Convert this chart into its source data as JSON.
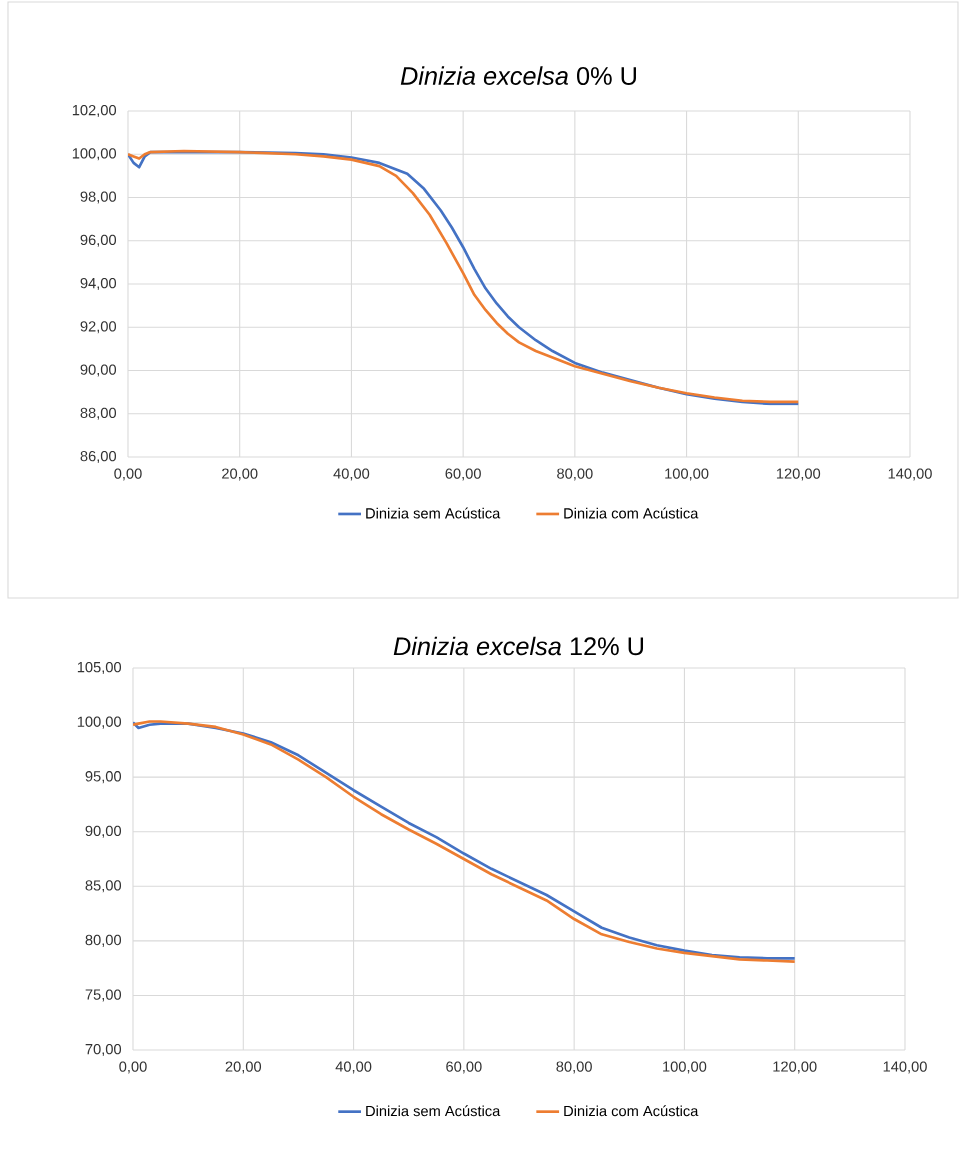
{
  "chart_data": [
    {
      "type": "line",
      "title": "*Dinizia excelsa* 0% U",
      "xlim": [
        0,
        140
      ],
      "ylim": [
        86,
        102
      ],
      "xticks": [
        {
          "value": 0,
          "label": "0,00"
        },
        {
          "value": 20,
          "label": "20,00"
        },
        {
          "value": 40,
          "label": "40,00"
        },
        {
          "value": 60,
          "label": "60,00"
        },
        {
          "value": 80,
          "label": "80,00"
        },
        {
          "value": 100,
          "label": "100,00"
        },
        {
          "value": 120,
          "label": "120,00"
        },
        {
          "value": 140,
          "label": "140,00"
        }
      ],
      "yticks": [
        {
          "value": 86,
          "label": "86,00"
        },
        {
          "value": 88,
          "label": "88,00"
        },
        {
          "value": 90,
          "label": "90,00"
        },
        {
          "value": 92,
          "label": "92,00"
        },
        {
          "value": 94,
          "label": "94,00"
        },
        {
          "value": 96,
          "label": "96,00"
        },
        {
          "value": 98,
          "label": "98,00"
        },
        {
          "value": 100,
          "label": "100,00"
        },
        {
          "value": 102,
          "label": "102,00"
        }
      ],
      "grid": true,
      "legend": "bottom",
      "marker": "none",
      "series": [
        {
          "name": "Dinizia sem Acústica",
          "color": "#4472c4",
          "x": [
            0,
            1,
            2,
            3,
            4,
            10,
            20,
            30,
            35,
            40,
            45,
            50,
            53,
            56,
            58,
            60,
            62,
            64,
            66,
            68,
            70,
            73,
            76,
            80,
            85,
            90,
            95,
            100,
            105,
            110,
            115,
            120
          ],
          "values": [
            100,
            99.6,
            99.4,
            99.9,
            100.1,
            100.1,
            100.1,
            100.05,
            100,
            99.85,
            99.6,
            99.1,
            98.4,
            97.4,
            96.6,
            95.7,
            94.7,
            93.8,
            93.1,
            92.5,
            92,
            91.4,
            90.9,
            90.35,
            89.9,
            89.55,
            89.2,
            88.9,
            88.7,
            88.55,
            88.45,
            88.45
          ]
        },
        {
          "name": "Dinizia com Acústica",
          "color": "#ed7d31",
          "x": [
            0,
            1,
            2,
            3,
            4,
            10,
            20,
            30,
            35,
            40,
            45,
            48,
            51,
            54,
            57,
            60,
            62,
            64,
            66,
            68,
            70,
            73,
            76,
            80,
            85,
            90,
            95,
            100,
            105,
            110,
            115,
            120
          ],
          "values": [
            100,
            99.9,
            99.8,
            100,
            100.1,
            100.15,
            100.1,
            100,
            99.9,
            99.75,
            99.45,
            99,
            98.2,
            97.2,
            95.9,
            94.5,
            93.5,
            92.8,
            92.2,
            91.7,
            91.3,
            90.9,
            90.6,
            90.2,
            89.85,
            89.5,
            89.2,
            88.95,
            88.75,
            88.6,
            88.55,
            88.55
          ]
        }
      ]
    },
    {
      "type": "line",
      "title": "*Dinizia excelsa* 12% U",
      "xlim": [
        0,
        140
      ],
      "ylim": [
        70,
        105
      ],
      "xticks": [
        {
          "value": 0,
          "label": "0,00"
        },
        {
          "value": 20,
          "label": "20,00"
        },
        {
          "value": 40,
          "label": "40,00"
        },
        {
          "value": 60,
          "label": "60,00"
        },
        {
          "value": 80,
          "label": "80,00"
        },
        {
          "value": 100,
          "label": "100,00"
        },
        {
          "value": 120,
          "label": "120,00"
        },
        {
          "value": 140,
          "label": "140,00"
        }
      ],
      "yticks": [
        {
          "value": 70,
          "label": "70,00"
        },
        {
          "value": 75,
          "label": "75,00"
        },
        {
          "value": 80,
          "label": "80,00"
        },
        {
          "value": 85,
          "label": "85,00"
        },
        {
          "value": 90,
          "label": "90,00"
        },
        {
          "value": 95,
          "label": "95,00"
        },
        {
          "value": 100,
          "label": "100,00"
        },
        {
          "value": 105,
          "label": "105,00"
        }
      ],
      "grid": true,
      "legend": "bottom",
      "marker": "none",
      "series": [
        {
          "name": "Dinizia sem Acústica",
          "color": "#4472c4",
          "x": [
            0,
            1,
            3,
            5,
            10,
            15,
            20,
            25,
            30,
            35,
            40,
            45,
            50,
            55,
            60,
            65,
            70,
            75,
            80,
            85,
            90,
            95,
            100,
            105,
            110,
            115,
            120
          ],
          "values": [
            100,
            99.5,
            99.8,
            99.9,
            99.9,
            99.5,
            99,
            98.2,
            97,
            95.4,
            93.8,
            92.3,
            90.8,
            89.5,
            88,
            86.6,
            85.4,
            84.2,
            82.7,
            81.2,
            80.3,
            79.6,
            79.1,
            78.7,
            78.5,
            78.4,
            78.4
          ]
        },
        {
          "name": "Dinizia com Acústica",
          "color": "#ed7d31",
          "x": [
            0,
            1,
            3,
            5,
            10,
            15,
            20,
            25,
            30,
            35,
            40,
            45,
            50,
            55,
            60,
            65,
            70,
            75,
            80,
            85,
            90,
            95,
            100,
            105,
            110,
            115,
            120
          ],
          "values": [
            99.8,
            99.9,
            100.1,
            100.1,
            99.9,
            99.6,
            98.9,
            98,
            96.6,
            95,
            93.2,
            91.6,
            90.2,
            88.9,
            87.5,
            86.1,
            84.9,
            83.7,
            82,
            80.6,
            79.9,
            79.3,
            78.9,
            78.6,
            78.3,
            78.2,
            78.1
          ]
        }
      ]
    }
  ]
}
